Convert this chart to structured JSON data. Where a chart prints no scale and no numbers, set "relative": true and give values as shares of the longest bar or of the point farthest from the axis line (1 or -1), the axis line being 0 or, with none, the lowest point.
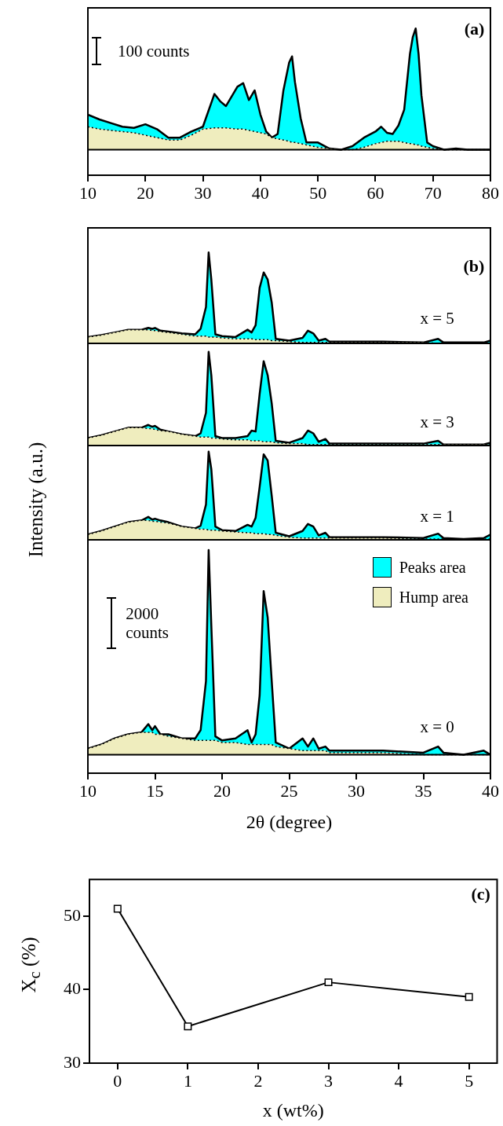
{
  "chart_data": [
    {
      "type": "area",
      "relative": true,
      "x": [
        10,
        12,
        14,
        16,
        18,
        20,
        22,
        24,
        26,
        28,
        30,
        32,
        33,
        34,
        36,
        37,
        38,
        39,
        40,
        41,
        42,
        43,
        44,
        45,
        45.5,
        46,
        47,
        48,
        50,
        52,
        54,
        56,
        58,
        60,
        61,
        62,
        63,
        64,
        65,
        66,
        66.5,
        67,
        67.5,
        68,
        69,
        70,
        72,
        74,
        76,
        78,
        80
      ],
      "xlim": [
        10,
        80
      ],
      "xticks": [
        10,
        20,
        30,
        40,
        50,
        60,
        70,
        80
      ],
      "tick_labels": "x",
      "annotations": [
        "(a)",
        "100 counts"
      ],
      "series": [
        {
          "color": "#efedbe",
          "line_style": "dotted",
          "values": [
            0.19,
            0.17,
            0.16,
            0.15,
            0.14,
            0.12,
            0.1,
            0.08,
            0.08,
            0.12,
            0.17,
            0.18,
            0.18,
            0.18,
            0.17,
            0.17,
            0.16,
            0.15,
            0.14,
            0.13,
            0.1,
            0.09,
            0.08,
            0.07,
            0.06,
            0.06,
            0.05,
            0.04,
            0.02,
            0.01,
            0,
            0,
            0.02,
            0.05,
            0.06,
            0.07,
            0.07,
            0.07,
            0.06,
            0.05,
            0.05,
            0.04,
            0.04,
            0.03,
            0.02,
            0.01,
            0,
            0,
            0,
            0,
            0
          ]
        },
        {
          "color": "#00ffff",
          "line_style": "solid",
          "values": [
            0.29,
            0.25,
            0.22,
            0.19,
            0.18,
            0.21,
            0.17,
            0.1,
            0.1,
            0.15,
            0.19,
            0.46,
            0.4,
            0.36,
            0.52,
            0.55,
            0.41,
            0.49,
            0.29,
            0.15,
            0.1,
            0.13,
            0.49,
            0.72,
            0.77,
            0.56,
            0.26,
            0.06,
            0.06,
            0.01,
            0,
            0.03,
            0.1,
            0.15,
            0.19,
            0.14,
            0.13,
            0.2,
            0.33,
            0.79,
            0.93,
            1,
            0.79,
            0.45,
            0.06,
            0.03,
            0,
            0.01,
            0,
            0,
            0
          ]
        }
      ]
    },
    {
      "type": "area",
      "relative": true,
      "x": [
        10,
        11,
        12,
        13,
        14,
        14.5,
        14.8,
        15,
        15.4,
        16,
        17,
        18,
        18.4,
        18.8,
        19,
        19.2,
        19.5,
        20,
        21,
        21.9,
        22.2,
        22.5,
        22.8,
        23.1,
        23.4,
        23.7,
        24,
        25,
        26,
        26.4,
        26.8,
        27.2,
        27.7,
        28,
        30,
        32,
        35,
        36.1,
        36.5,
        38,
        39.5,
        40
      ],
      "xlim": [
        10,
        40
      ],
      "xticks": [
        10,
        15,
        20,
        25,
        30,
        35,
        40
      ],
      "tick_labels": false,
      "annotations": [
        "(b)",
        "x = 5"
      ],
      "series": [
        {
          "color": "#efedbe",
          "line_style": "dotted",
          "values": [
            0.07,
            0.09,
            0.12,
            0.15,
            0.15,
            0.15,
            0.14,
            0.14,
            0.13,
            0.12,
            0.1,
            0.08,
            0.08,
            0.08,
            0.07,
            0.07,
            0.07,
            0.06,
            0.05,
            0.05,
            0.05,
            0.04,
            0.04,
            0.04,
            0.04,
            0.03,
            0.03,
            0.02,
            0.01,
            0.01,
            0.01,
            0.01,
            0.01,
            0.01,
            0.01,
            0.01,
            0.01,
            0,
            0,
            0,
            0,
            0
          ]
        },
        {
          "color": "#00ffff",
          "line_style": "solid",
          "values": [
            0.07,
            0.09,
            0.12,
            0.15,
            0.15,
            0.17,
            0.16,
            0.17,
            0.14,
            0.13,
            0.11,
            0.1,
            0.16,
            0.4,
            1,
            0.7,
            0.1,
            0.08,
            0.07,
            0.15,
            0.12,
            0.2,
            0.61,
            0.78,
            0.7,
            0.45,
            0.05,
            0.03,
            0.06,
            0.14,
            0.11,
            0.03,
            0.05,
            0.02,
            0.02,
            0.02,
            0.01,
            0.05,
            0.01,
            0.01,
            0.01,
            0.03
          ]
        }
      ]
    },
    {
      "type": "area",
      "relative": true,
      "x": [
        10,
        11,
        12,
        13,
        14,
        14.5,
        14.8,
        15,
        15.4,
        16,
        17,
        18,
        18.4,
        18.8,
        19,
        19.2,
        19.5,
        20,
        21,
        21.9,
        22.2,
        22.5,
        22.8,
        23.1,
        23.4,
        23.7,
        24,
        25,
        26,
        26.4,
        26.8,
        27.2,
        27.7,
        28,
        30,
        32,
        35,
        36.1,
        36.5,
        38,
        39.5,
        40
      ],
      "xlim": [
        10,
        40
      ],
      "xticks": [
        10,
        15,
        20,
        25,
        30,
        35,
        40
      ],
      "tick_labels": false,
      "ylabel": "Intensity (a.u.)",
      "annotations": [
        "x = 3"
      ],
      "series": [
        {
          "color": "#efedbe",
          "line_style": "dotted",
          "values": [
            0.08,
            0.11,
            0.15,
            0.19,
            0.19,
            0.18,
            0.18,
            0.17,
            0.16,
            0.15,
            0.12,
            0.1,
            0.09,
            0.09,
            0.09,
            0.08,
            0.08,
            0.07,
            0.06,
            0.06,
            0.05,
            0.05,
            0.05,
            0.04,
            0.04,
            0.04,
            0.03,
            0.02,
            0.02,
            0.01,
            0.01,
            0.01,
            0.01,
            0.01,
            0.01,
            0.01,
            0.01,
            0.01,
            0.01,
            0.01,
            0.01,
            0.01
          ]
        },
        {
          "color": "#00ffff",
          "line_style": "solid",
          "values": [
            0.08,
            0.11,
            0.15,
            0.19,
            0.19,
            0.22,
            0.2,
            0.21,
            0.17,
            0.15,
            0.12,
            0.1,
            0.13,
            0.35,
            1,
            0.75,
            0.1,
            0.08,
            0.08,
            0.1,
            0.16,
            0.15,
            0.55,
            0.9,
            0.75,
            0.45,
            0.05,
            0.03,
            0.08,
            0.16,
            0.13,
            0.04,
            0.07,
            0.02,
            0.02,
            0.02,
            0.02,
            0.05,
            0.01,
            0.01,
            0.01,
            0.03
          ]
        }
      ]
    },
    {
      "type": "area",
      "relative": true,
      "x": [
        10,
        11,
        12,
        13,
        14,
        14.5,
        14.8,
        15,
        15.4,
        16,
        17,
        18,
        18.4,
        18.8,
        19,
        19.2,
        19.5,
        20,
        21,
        21.9,
        22.2,
        22.5,
        22.8,
        23.1,
        23.4,
        23.7,
        24,
        25,
        26,
        26.4,
        26.8,
        27.2,
        27.7,
        28,
        30,
        32,
        35,
        36.1,
        36.5,
        38,
        39.5,
        40
      ],
      "xlim": [
        10,
        40
      ],
      "xticks": [
        10,
        15,
        20,
        25,
        30,
        35,
        40
      ],
      "tick_labels": false,
      "annotations": [
        "x = 1"
      ],
      "series": [
        {
          "color": "#efedbe",
          "line_style": "dotted",
          "values": [
            0.06,
            0.1,
            0.15,
            0.2,
            0.22,
            0.22,
            0.21,
            0.21,
            0.2,
            0.19,
            0.15,
            0.13,
            0.12,
            0.12,
            0.11,
            0.11,
            0.11,
            0.1,
            0.09,
            0.08,
            0.08,
            0.07,
            0.07,
            0.07,
            0.06,
            0.06,
            0.05,
            0.03,
            0.02,
            0.02,
            0.02,
            0.02,
            0.02,
            0.02,
            0.02,
            0.02,
            0.01,
            0.01,
            0.01,
            0.01,
            0.01,
            0.01
          ]
        },
        {
          "color": "#00ffff",
          "line_style": "solid",
          "values": [
            0.06,
            0.1,
            0.15,
            0.2,
            0.22,
            0.26,
            0.23,
            0.24,
            0.22,
            0.2,
            0.15,
            0.13,
            0.16,
            0.4,
            1,
            0.8,
            0.15,
            0.11,
            0.1,
            0.17,
            0.15,
            0.25,
            0.6,
            0.97,
            0.9,
            0.5,
            0.08,
            0.04,
            0.1,
            0.18,
            0.15,
            0.05,
            0.08,
            0.03,
            0.03,
            0.03,
            0.02,
            0.07,
            0.02,
            0.01,
            0.02,
            0.06
          ]
        }
      ]
    },
    {
      "type": "area",
      "relative": true,
      "x": [
        10,
        11,
        12,
        13,
        14,
        14.5,
        14.8,
        15,
        15.4,
        16,
        17,
        18,
        18.4,
        18.8,
        19,
        19.2,
        19.5,
        20,
        21,
        21.9,
        22.2,
        22.5,
        22.8,
        23.1,
        23.4,
        23.7,
        24,
        25,
        26,
        26.4,
        26.8,
        27.2,
        27.7,
        28,
        30,
        32,
        35,
        36.1,
        36.5,
        38,
        39.5,
        40
      ],
      "xlim": [
        10,
        40
      ],
      "xticks": [
        10,
        15,
        20,
        25,
        30,
        35,
        40
      ],
      "tick_labels": "x",
      "xlabel": "2θ (degree)",
      "legend": "top right",
      "annotations": [
        "x = 0",
        "2000 counts"
      ],
      "series": [
        {
          "name": "Hump area",
          "color": "#efedbe",
          "line_style": "dotted",
          "values": [
            0.03,
            0.05,
            0.08,
            0.1,
            0.11,
            0.11,
            0.11,
            0.1,
            0.1,
            0.09,
            0.08,
            0.07,
            0.07,
            0.07,
            0.07,
            0.07,
            0.07,
            0.06,
            0.06,
            0.05,
            0.05,
            0.05,
            0.05,
            0.05,
            0.05,
            0.05,
            0.04,
            0.03,
            0.02,
            0.02,
            0.02,
            0.02,
            0.02,
            0.01,
            0.01,
            0.01,
            0,
            0,
            0,
            0,
            0,
            0
          ]
        },
        {
          "name": "Peaks area",
          "color": "#00ffff",
          "line_style": "solid",
          "values": [
            0.03,
            0.05,
            0.08,
            0.1,
            0.11,
            0.15,
            0.12,
            0.14,
            0.1,
            0.1,
            0.08,
            0.08,
            0.12,
            0.36,
            1,
            0.63,
            0.09,
            0.07,
            0.08,
            0.12,
            0.06,
            0.1,
            0.29,
            0.8,
            0.67,
            0.36,
            0.06,
            0.03,
            0.08,
            0.04,
            0.08,
            0.03,
            0.04,
            0.02,
            0.02,
            0.02,
            0.01,
            0.04,
            0.01,
            0,
            0.02,
            0
          ]
        }
      ]
    },
    {
      "type": "line",
      "x": [
        0,
        1,
        3,
        5
      ],
      "values": [
        51,
        35,
        41,
        39
      ],
      "color": "#000000",
      "marker": "square",
      "xlim": [
        -0.4,
        5.4
      ],
      "xticks": [
        0,
        1,
        2,
        3,
        4,
        5
      ],
      "ylim": [
        30,
        55
      ],
      "yticks": [
        30,
        40,
        50
      ],
      "xlabel": "x (wt%)",
      "ylabel": "X$_{c}$ (%)",
      "annotations": [
        "(c)"
      ]
    }
  ]
}
